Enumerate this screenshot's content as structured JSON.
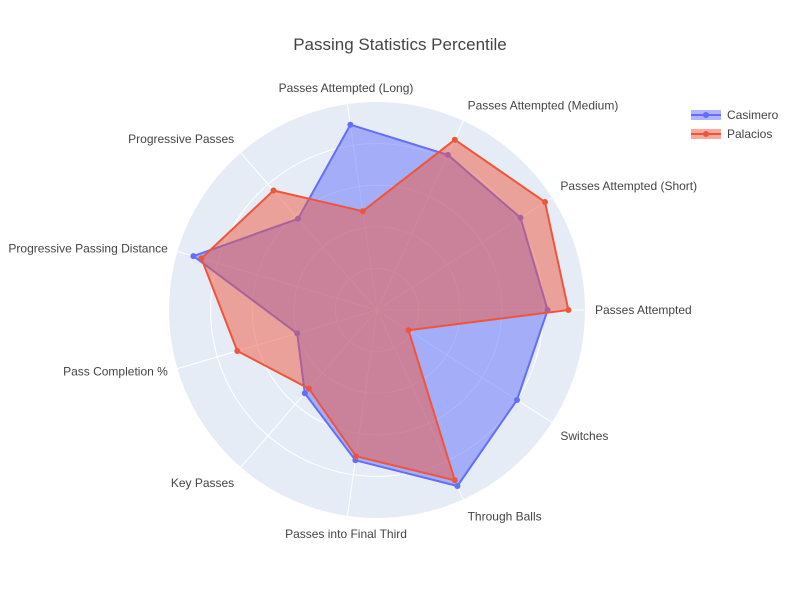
{
  "chart_data": {
    "type": "radar",
    "title": "Passing Statistics Percentile",
    "categories": [
      "Passes Attempted",
      "Passes Attempted (Short)",
      "Passes Attempted (Medium)",
      "Passes Attempted (Long)",
      "Progressive Passes",
      "Progressive Passing Distance",
      "Pass Completion %",
      "Key Passes",
      "Passes into Final Third",
      "Through Balls",
      "Switches"
    ],
    "radial_range": [
      0,
      100
    ],
    "grid": true,
    "legend_position": "top-right",
    "series": [
      {
        "name": "Casimero",
        "color": "#636EFA",
        "values": [
          82,
          82,
          82,
          90,
          58,
          92,
          40,
          53,
          73,
          93,
          80
        ]
      },
      {
        "name": "Palacios",
        "color": "#EF553B",
        "values": [
          92,
          96,
          90,
          48,
          76,
          88,
          70,
          50,
          71,
          90,
          18
        ]
      }
    ]
  }
}
